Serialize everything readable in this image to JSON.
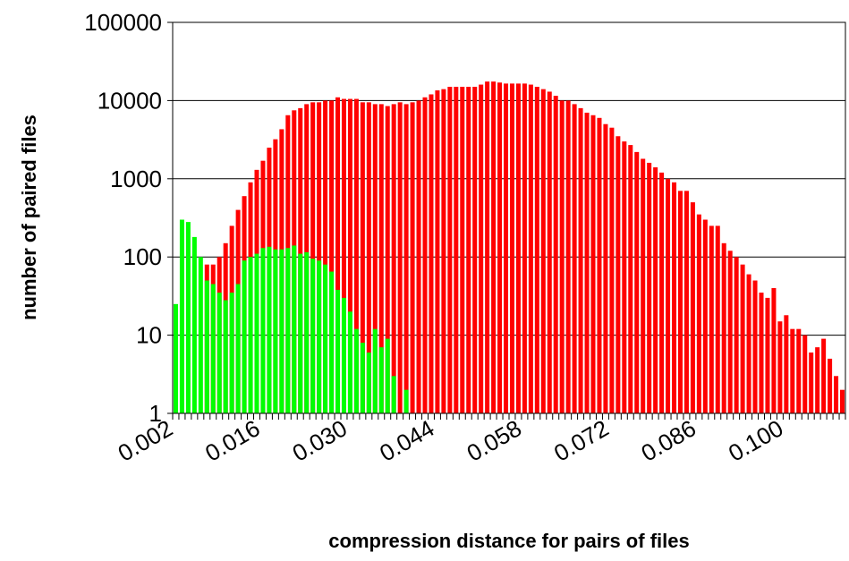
{
  "chart_data": {
    "type": "bar",
    "log_scale": true,
    "grid": true,
    "y_label": "number of paired files",
    "x_label": "compression distance for pairs of files",
    "categories": [
      "0.002",
      null,
      null,
      null,
      null,
      null,
      null,
      null,
      null,
      null,
      null,
      null,
      null,
      null,
      "0.016",
      null,
      null,
      null,
      null,
      null,
      null,
      null,
      null,
      null,
      null,
      null,
      null,
      null,
      "0.030",
      null,
      null,
      null,
      null,
      null,
      null,
      null,
      null,
      null,
      null,
      null,
      null,
      null,
      "0.044",
      null,
      null,
      null,
      null,
      null,
      null,
      null,
      null,
      null,
      null,
      null,
      null,
      null,
      "0.058",
      null,
      null,
      null,
      null,
      null,
      null,
      null,
      null,
      null,
      null,
      null,
      null,
      null,
      "0.072",
      null,
      null,
      null,
      null,
      null,
      null,
      null,
      null,
      null,
      null,
      null,
      null,
      null,
      "0.086",
      null,
      null,
      null,
      null,
      null,
      null,
      null,
      null,
      null,
      null,
      null,
      null,
      null,
      "0.100",
      null,
      null,
      null,
      null,
      null,
      null,
      null,
      null,
      null
    ],
    "series": [
      {
        "color": "#ff0000",
        "values": [
          null,
          null,
          null,
          null,
          null,
          80,
          80,
          100,
          150,
          250,
          400,
          600,
          900,
          1300,
          1700,
          2500,
          3200,
          4300,
          6500,
          7500,
          8000,
          9000,
          9500,
          9500,
          10000,
          10000,
          11000,
          10500,
          10500,
          10500,
          9500,
          9500,
          9000,
          9000,
          8500,
          9000,
          9500,
          9000,
          9500,
          10000,
          11000,
          12000,
          13500,
          14000,
          15000,
          15000,
          15000,
          15000,
          15000,
          16000,
          17500,
          17500,
          17000,
          16500,
          16500,
          16500,
          16500,
          16000,
          15000,
          14000,
          13000,
          11500,
          10000,
          10000,
          9000,
          8000,
          7000,
          6500,
          6000,
          5000,
          4500,
          3500,
          3000,
          2700,
          2200,
          1800,
          1600,
          1400,
          1200,
          1000,
          900,
          700,
          700,
          500,
          350,
          300,
          250,
          250,
          150,
          120,
          100,
          80,
          60,
          50,
          35,
          30,
          40,
          15,
          18,
          12,
          12,
          10,
          6,
          7,
          9,
          5,
          3,
          2
        ]
      },
      {
        "color": "#00ff00",
        "values": [
          25,
          300,
          280,
          180,
          100,
          50,
          45,
          35,
          28,
          35,
          45,
          90,
          100,
          110,
          130,
          135,
          125,
          125,
          130,
          140,
          110,
          115,
          95,
          90,
          80,
          65,
          38,
          30,
          20,
          12,
          8,
          6,
          12,
          7,
          9,
          3,
          null,
          2,
          null,
          null,
          null,
          null,
          null,
          null,
          null,
          null,
          null,
          null,
          null,
          null,
          null,
          null,
          null,
          null,
          null,
          null,
          null,
          null,
          null,
          null,
          null,
          null,
          null,
          null,
          null,
          null,
          null,
          null,
          null,
          null,
          null,
          null,
          null,
          null,
          null,
          null,
          null,
          null,
          null,
          null,
          null,
          null,
          null,
          null,
          null,
          null,
          null,
          null,
          null,
          null,
          null,
          null,
          null,
          null,
          null,
          null,
          null,
          null,
          null,
          null,
          null,
          null,
          null,
          null,
          null,
          null,
          null,
          null
        ]
      }
    ],
    "ylim": [
      1,
      100000
    ],
    "yticks": [
      1,
      10,
      100,
      1000,
      10000,
      100000
    ]
  }
}
